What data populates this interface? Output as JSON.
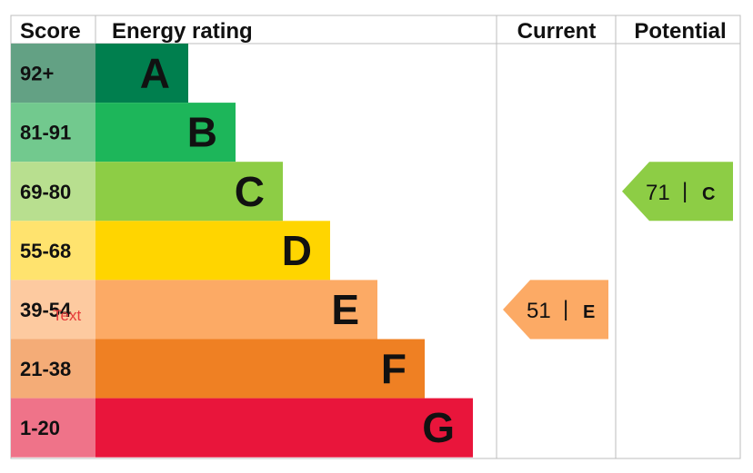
{
  "chart_data": {
    "type": "bar",
    "headers": {
      "score": "Score",
      "rating": "Energy rating",
      "current": "Current",
      "potential": "Potential"
    },
    "bands": [
      {
        "score": "92+",
        "letter": "A",
        "color": "#007f4e",
        "score_color": "#63a184"
      },
      {
        "score": "81-91",
        "letter": "B",
        "color": "#1db65a",
        "score_color": "#72c98e"
      },
      {
        "score": "69-80",
        "letter": "C",
        "color": "#8dcd45",
        "score_color": "#b8df8f"
      },
      {
        "score": "55-68",
        "letter": "D",
        "color": "#ffd500",
        "score_color": "#ffe36e"
      },
      {
        "score": "39-54",
        "letter": "E",
        "color": "#fcaa65",
        "score_color": "#fdcaa0"
      },
      {
        "score": "21-38",
        "letter": "F",
        "color": "#ef8023",
        "score_color": "#f4ac77"
      },
      {
        "score": "1-20",
        "letter": "G",
        "color": "#e9153b",
        "score_color": "#ef7389"
      }
    ],
    "current": {
      "value": 51,
      "letter": "E",
      "separator": "|",
      "color": "#fcaa65"
    },
    "potential": {
      "value": 71,
      "letter": "C",
      "separator": "|",
      "color": "#8dcd45"
    },
    "stray_text": "Text"
  }
}
